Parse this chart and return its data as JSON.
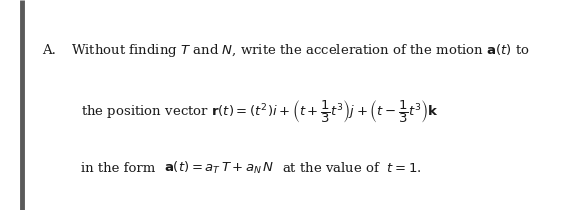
{
  "bg_color": "#ffffff",
  "left_bar_color": "#5a5a5a",
  "text_color": "#1a1a1a",
  "fig_width": 5.71,
  "fig_height": 2.1
}
